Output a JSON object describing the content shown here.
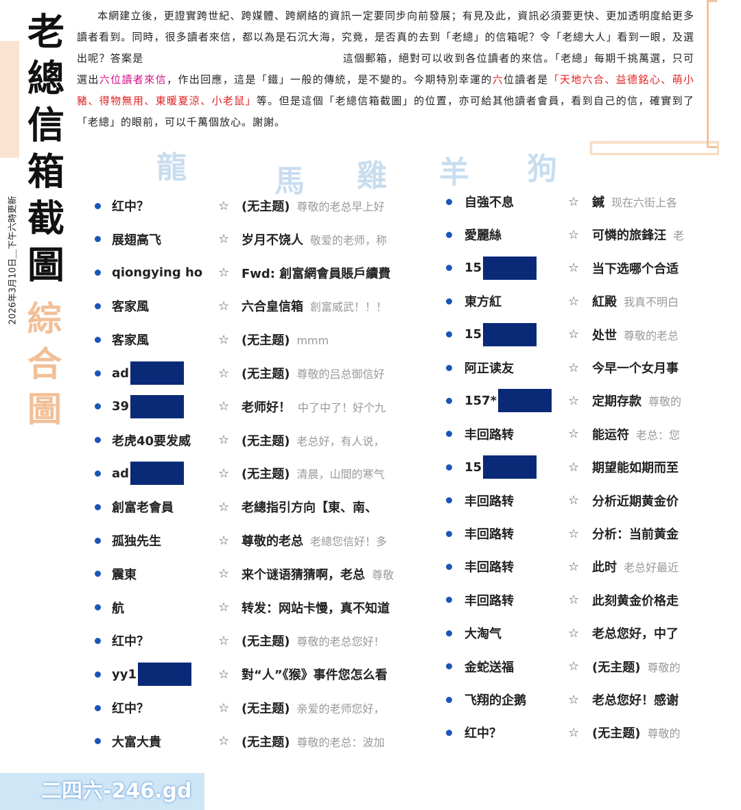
{
  "header": {
    "title": "老總信箱截圖",
    "subtitle": "綜合圖",
    "updated": "2026年3月10日＿下午六時更新"
  },
  "intro": [
    "本網建立後",
    "，更證實跨世紀、跨媒體、跨網絡的資訊一定要同步向前發展；有見及此，資訊必須要更快、更加透明度給更多讀者看到。同時，很多讀者來信，都以為是石沉大海，究竟，是否真的去到「老總」的信箱呢？令「老總大人」看到一眼，及選出呢？答案是",
    "這個郵箱，絕對可以收到各位讀者的來信。「老總」每期千挑萬選，只可選出",
    "六位讀者來信",
    "，作出回應，這是「鐵」一般的傳統，是不變的。今期特別幸運的",
    "六",
    "位讀者是",
    "「天地六合、益德銘心、萌小豬、得物無用、東暖夏涼、小老鼠」",
    "等。但是這個「老總信箱截圖」的位置，亦可給其他讀者會員，看到自己的信，確實到了「老總」的眼前，可以千萬個放心。謝謝。"
  ],
  "watermark": [
    "龍",
    "馬",
    "雞",
    "羊",
    "狗"
  ],
  "inbox": {
    "left": [
      {
        "sender": "红中？",
        "subject": "(无主题)",
        "preview": "尊敬的老总早上好"
      },
      {
        "sender": "展翅高飞",
        "subject": "岁月不饶人",
        "preview": "敬爱的老师，称"
      },
      {
        "sender": "qiongying ho",
        "subject": "Fwd: 創富網會員賬戶續費"
      },
      {
        "sender": "客家風",
        "subject": "六合皇信箱",
        "preview": "創富威武！！！"
      },
      {
        "sender": "客家風",
        "subject": "(无主题)",
        "preview": "mmm"
      },
      {
        "sender": "ad",
        "redacted": true,
        "subject": "(无主题)",
        "preview": "尊敬的吕总御信好"
      },
      {
        "sender": "39",
        "redacted": true,
        "subject": "老师好！",
        "preview": "中了中了！好个九"
      },
      {
        "sender": "老虎40要发威",
        "subject": "(无主题)",
        "preview": "老总好，有人说，"
      },
      {
        "sender": "ad",
        "redacted": true,
        "subject": "(无主题)",
        "preview": "清晨，山間的寒气"
      },
      {
        "sender": "創富老會員",
        "subject": "老總指引方向【東、南、"
      },
      {
        "sender": "孤独先生",
        "subject": "尊敬的老总",
        "preview": "老總您信好！多"
      },
      {
        "sender": "震東",
        "subject": "来个谜语猜猜啊，老总",
        "preview": "尊敬"
      },
      {
        "sender": "航",
        "subject": "转发：网站卡慢，真不知道"
      },
      {
        "sender": "红中？",
        "subject": "(无主题)",
        "preview": "尊敬的老总您好！"
      },
      {
        "sender": "yy1",
        "redacted": true,
        "subject": "對“人”《猴》事件您怎么看"
      },
      {
        "sender": "红中？",
        "subject": "(无主题)",
        "preview": "亲爱的老师您好，"
      },
      {
        "sender": "大富大貴",
        "subject": "(无主题)",
        "preview": "尊敬的老总：波加"
      }
    ],
    "right": [
      {
        "sender": "自強不息",
        "subject": "鍼",
        "preview": "现在六街上各"
      },
      {
        "sender": "愛麗絲",
        "subject": "可憐的旅鋒汪",
        "preview": "老"
      },
      {
        "sender": "15",
        "redacted": true,
        "subject": "当下选哪个合适"
      },
      {
        "sender": "東方紅",
        "subject": "紅殿",
        "preview": "我真不明白"
      },
      {
        "sender": "15",
        "redacted": true,
        "subject": "处世",
        "preview": "尊敬的老总"
      },
      {
        "sender": "阿正读友",
        "subject": "今早一个女月事"
      },
      {
        "sender": "157*",
        "redacted": true,
        "subject": "定期存款",
        "preview": "尊敬的"
      },
      {
        "sender": "丰回路转",
        "subject": "能运符",
        "preview": "老总：您"
      },
      {
        "sender": "15",
        "redacted": true,
        "subject": "期望能如期而至"
      },
      {
        "sender": "丰回路转",
        "subject": "分析近期黄金价"
      },
      {
        "sender": "丰回路转",
        "subject": "分析：当前黄金"
      },
      {
        "sender": "丰回路转",
        "subject": "此时",
        "preview": "老总好最近"
      },
      {
        "sender": "丰回路转",
        "subject": "此刻黄金价格走"
      },
      {
        "sender": "大淘气",
        "subject": "老总您好，中了"
      },
      {
        "sender": "金蛇送福",
        "subject": "(无主题)",
        "preview": "尊敬的"
      },
      {
        "sender": "飞翔的企鹅",
        "subject": "老总您好！感谢"
      },
      {
        "sender": "红中？",
        "subject": "(无主题)",
        "preview": "尊敬的"
      }
    ]
  },
  "footer": {
    "logo": "二四六-246.gd"
  }
}
